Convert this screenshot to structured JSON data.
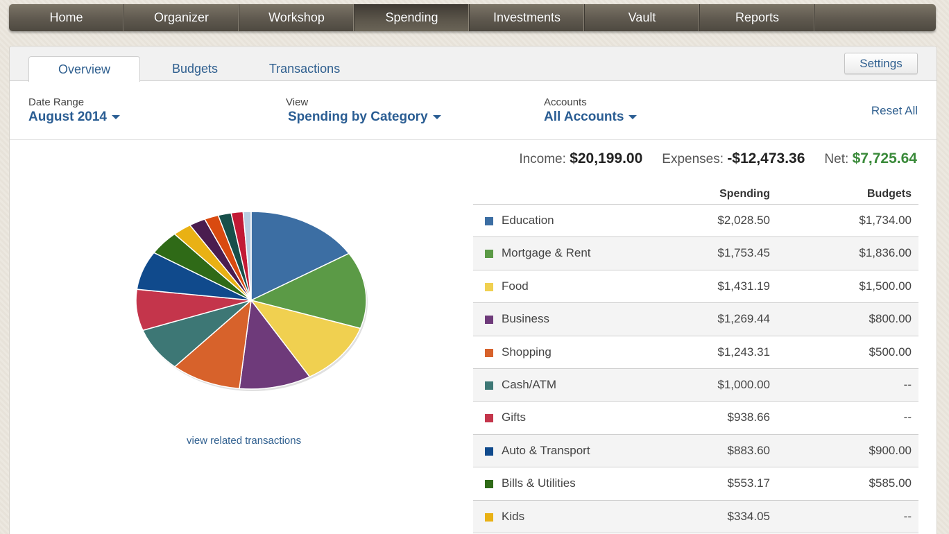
{
  "nav": {
    "items": [
      "Home",
      "Organizer",
      "Workshop",
      "Spending",
      "Investments",
      "Vault",
      "Reports"
    ],
    "active": "Spending"
  },
  "tabs": [
    {
      "label": "Overview",
      "active": true
    },
    {
      "label": "Budgets",
      "active": false
    },
    {
      "label": "Transactions",
      "active": false
    }
  ],
  "settings_label": "Settings",
  "filters": {
    "date_range": {
      "label": "Date Range",
      "value": "August 2014"
    },
    "view": {
      "label": "View",
      "value": "Spending by Category"
    },
    "accounts": {
      "label": "Accounts",
      "value": "All Accounts"
    },
    "reset_label": "Reset All"
  },
  "summary": {
    "income_label": "Income:",
    "income": "$20,199.00",
    "expenses_label": "Expenses:",
    "expenses": "-$12,473.36",
    "net_label": "Net:",
    "net": "$7,725.64"
  },
  "view_related_label": "view related transactions",
  "table": {
    "headers": {
      "spending": "Spending",
      "budgets": "Budgets"
    },
    "rows": [
      {
        "category": "Education",
        "spending": "$2,028.50",
        "budget": "$1,734.00",
        "color": "#3c6ea3"
      },
      {
        "category": "Mortgage & Rent",
        "spending": "$1,753.45",
        "budget": "$1,836.00",
        "color": "#5b9a46"
      },
      {
        "category": "Food",
        "spending": "$1,431.19",
        "budget": "$1,500.00",
        "color": "#f0d050"
      },
      {
        "category": "Business",
        "spending": "$1,269.44",
        "budget": "$800.00",
        "color": "#6e3a7a"
      },
      {
        "category": "Shopping",
        "spending": "$1,243.31",
        "budget": "$500.00",
        "color": "#d7622b"
      },
      {
        "category": "Cash/ATM",
        "spending": "$1,000.00",
        "budget": "--",
        "color": "#3d7775"
      },
      {
        "category": "Gifts",
        "spending": "$938.66",
        "budget": "--",
        "color": "#c4354b"
      },
      {
        "category": "Auto & Transport",
        "spending": "$883.60",
        "budget": "$900.00",
        "color": "#104a8c"
      },
      {
        "category": "Bills & Utilities",
        "spending": "$553.17",
        "budget": "$585.00",
        "color": "#2f6a17"
      },
      {
        "category": "Kids",
        "spending": "$334.05",
        "budget": "--",
        "color": "#e9b114"
      }
    ]
  },
  "chart_data": {
    "type": "pie",
    "slices": [
      {
        "label": "Education",
        "value": 2028.5,
        "color": "#3c6ea3"
      },
      {
        "label": "Mortgage & Rent",
        "value": 1753.45,
        "color": "#5b9a46"
      },
      {
        "label": "Food",
        "value": 1431.19,
        "color": "#f0d050"
      },
      {
        "label": "Business",
        "value": 1269.44,
        "color": "#6e3a7a"
      },
      {
        "label": "Shopping",
        "value": 1243.31,
        "color": "#d7622b"
      },
      {
        "label": "Cash/ATM",
        "value": 1000.0,
        "color": "#3d7775"
      },
      {
        "label": "Gifts",
        "value": 938.66,
        "color": "#c4354b"
      },
      {
        "label": "Auto & Transport",
        "value": 883.6,
        "color": "#104a8c"
      },
      {
        "label": "Bills & Utilities",
        "value": 553.17,
        "color": "#2f6a17"
      },
      {
        "label": "Kids",
        "value": 334.05,
        "color": "#e9b114"
      },
      {
        "label": "",
        "value": 290,
        "color": "#4a1d4f"
      },
      {
        "label": "",
        "value": 250,
        "color": "#d94a10"
      },
      {
        "label": "",
        "value": 230,
        "color": "#174f4a"
      },
      {
        "label": "",
        "value": 210,
        "color": "#c21a35"
      },
      {
        "label": "",
        "value": 140,
        "color": "#b8cde0"
      }
    ]
  }
}
